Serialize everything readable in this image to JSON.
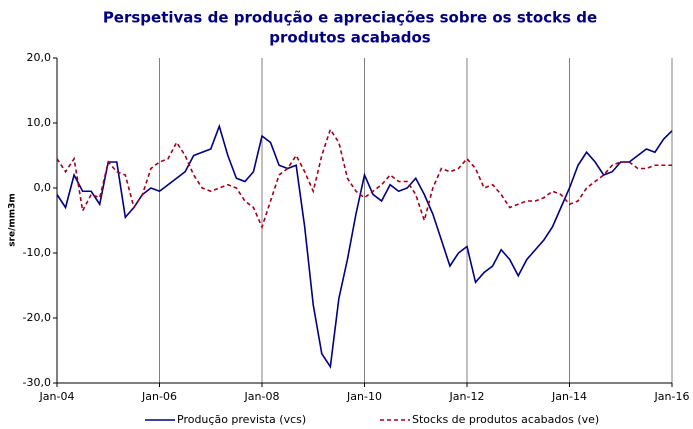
{
  "chart_data": {
    "type": "line",
    "title": [
      "Perspetivas de produção e apreciações sobre os stocks de",
      "produtos acabados"
    ],
    "y_label": "sre/mm3m",
    "categories": [
      "Jan-04",
      null,
      null,
      null,
      null,
      null,
      null,
      null,
      null,
      null,
      null,
      null,
      "Jan-06",
      null,
      null,
      null,
      null,
      null,
      null,
      null,
      null,
      null,
      null,
      null,
      "Jan-08",
      null,
      null,
      null,
      null,
      null,
      null,
      null,
      null,
      null,
      null,
      null,
      "Jan-10",
      null,
      null,
      null,
      null,
      null,
      null,
      null,
      null,
      null,
      null,
      null,
      "Jan-12",
      null,
      null,
      null,
      null,
      null,
      null,
      null,
      null,
      null,
      null,
      null,
      "Jan-14",
      null,
      null,
      null,
      null,
      null,
      null,
      null,
      null,
      null,
      null,
      null,
      "Jan-16"
    ],
    "series": [
      {
        "name": "Produção prevista (vcs)",
        "color": "#000080",
        "dashed": false,
        "values": [
          -1,
          -3,
          2,
          -0.5,
          -0.5,
          -2.5,
          4,
          4,
          -4.5,
          -3,
          -1,
          0,
          -0.5,
          0.5,
          1.5,
          2.5,
          5,
          5.5,
          6,
          9.5,
          5,
          1.5,
          1,
          2.5,
          8,
          7,
          3.5,
          3,
          3.5,
          -6,
          -18,
          -25.5,
          -27.5,
          -17,
          -11,
          -4,
          2,
          -1,
          -2,
          0.5,
          -0.5,
          0,
          1.5,
          -1,
          -4,
          -8,
          -12,
          -10,
          -9,
          -14.5,
          -13,
          -12,
          -9.5,
          -11,
          -13.5,
          -11,
          -9.5,
          -8,
          -6,
          -3,
          0,
          3.5,
          5.5,
          4,
          2,
          2.5,
          4,
          4,
          5,
          6,
          5.5,
          7.5,
          8.8
        ]
      },
      {
        "name": "Stocks de produtos acabados (ve)",
        "color": "#a0001e",
        "dashed": true,
        "values": [
          4.5,
          2.5,
          4.5,
          -3.5,
          -1,
          -1.5,
          4,
          2.5,
          2,
          -3,
          -1,
          3,
          4,
          4.5,
          7,
          5,
          2,
          0,
          -0.5,
          0,
          0.5,
          0,
          -2,
          -3,
          -6,
          -2,
          2,
          3,
          5,
          2.5,
          -0.5,
          5,
          9,
          7,
          1.5,
          -0.5,
          -1.5,
          -0.5,
          0.5,
          2,
          1,
          1,
          -1,
          -5,
          0,
          3,
          2.5,
          3,
          4.5,
          3,
          0,
          0.5,
          -1,
          -3,
          -2.5,
          -2,
          -2,
          -1.5,
          -0.5,
          -1,
          -2.5,
          -2,
          0,
          1,
          2,
          3.5,
          4,
          4,
          3,
          3,
          3.5,
          3.5,
          3.5
        ]
      }
    ],
    "ylim": [
      -30,
      20
    ],
    "yticks": [
      {
        "value": -30,
        "label": "-30,0"
      },
      {
        "value": -20,
        "label": "-20,0"
      },
      {
        "value": -10,
        "label": "-10,0"
      },
      {
        "value": 0,
        "label": "0,0"
      },
      {
        "value": 10,
        "label": "10,0"
      },
      {
        "value": 20,
        "label": "20,0"
      }
    ],
    "grid_x": true
  }
}
